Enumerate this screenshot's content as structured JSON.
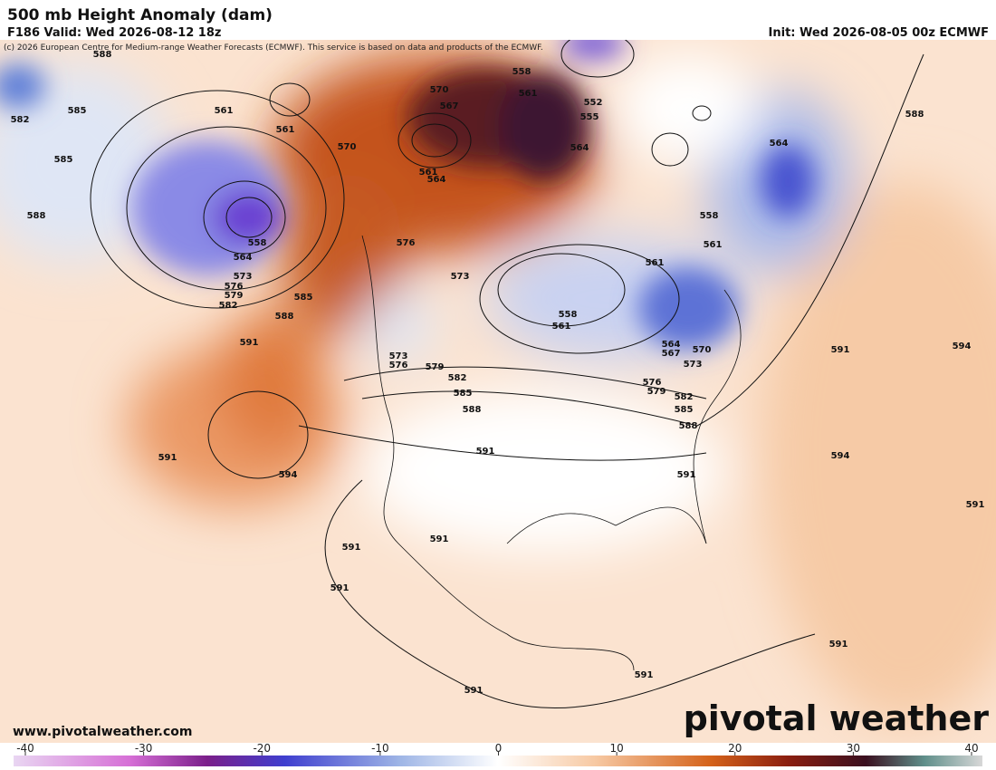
{
  "header": {
    "title": "500 mb Height Anomaly (dam)",
    "valid": "F186 Valid: Wed 2026-08-12 18z",
    "init": "Init: Wed 2026-08-05 00z ECMWF",
    "credit": "(c) 2026 European Centre for Medium-range Weather Forecasts (ECMWF). This service is based on data and products of the ECMWF."
  },
  "contour_labels": [
    588,
    582,
    585,
    585,
    588,
    561,
    561,
    558,
    564,
    573,
    576,
    579,
    582,
    585,
    588,
    591,
    591,
    594,
    570,
    567,
    570,
    561,
    564,
    576,
    573,
    558,
    561,
    552,
    555,
    564,
    558,
    561,
    564,
    588,
    561,
    558,
    561,
    573,
    576,
    579,
    582,
    585,
    588,
    591,
    564,
    567,
    570,
    573,
    576,
    579,
    582,
    585,
    588,
    591,
    591,
    594,
    594,
    591,
    591,
    591,
    591,
    591,
    591,
    591
  ],
  "footer": {
    "website": "www.pivotalweather.com",
    "logo": "pivotal weather"
  },
  "colorbar": {
    "ticks": [
      -40,
      -30,
      -20,
      -10,
      0,
      10,
      20,
      30,
      40
    ]
  }
}
